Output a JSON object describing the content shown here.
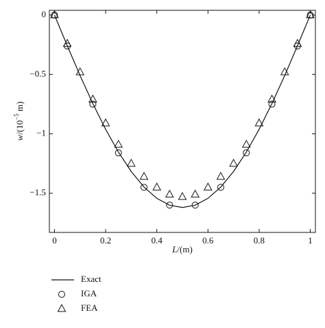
{
  "chart_data": {
    "type": "line",
    "xlabel": [
      "L",
      "/(m)"
    ],
    "ylabel": [
      "w",
      "/(10",
      "−5",
      " m)"
    ],
    "xlim": [
      -0.02,
      1.02
    ],
    "ylim": [
      -1.83,
      0.04
    ],
    "xticks": [
      0,
      0.2,
      0.4,
      0.6,
      0.8,
      1
    ],
    "yticks": [
      0,
      {
        "value": -0.5,
        "label": "−0.5"
      },
      {
        "value": -1,
        "label": "−1"
      },
      {
        "value": -1.5,
        "label": "−1.5"
      }
    ],
    "series": [
      {
        "name": "Exact",
        "color": "#111111",
        "marker": "none",
        "x": [
          0,
          0.05,
          0.1,
          0.15,
          0.2,
          0.25,
          0.3,
          0.35,
          0.4,
          0.45,
          0.5,
          0.55,
          0.6,
          0.65,
          0.7,
          0.75,
          0.8,
          0.85,
          0.9,
          0.95,
          1
        ],
        "values": [
          0,
          -0.258,
          -0.509,
          -0.745,
          -0.962,
          -1.154,
          -1.317,
          -1.448,
          -1.543,
          -1.601,
          -1.62,
          -1.601,
          -1.543,
          -1.448,
          -1.317,
          -1.154,
          -0.962,
          -0.745,
          -0.509,
          -0.258,
          0
        ]
      },
      {
        "name": "IGA",
        "color": "#111111",
        "marker": "circle",
        "x": [
          0,
          0.05,
          0.15,
          0.25,
          0.35,
          0.45,
          0.55,
          0.65,
          0.75,
          0.85,
          0.95,
          1
        ],
        "values": [
          0,
          -0.26,
          -0.75,
          -1.16,
          -1.45,
          -1.6,
          -1.6,
          -1.45,
          -1.16,
          -0.75,
          -0.26,
          0
        ]
      },
      {
        "name": "FEA",
        "color": "#111111",
        "marker": "triangle",
        "x": [
          0,
          0.05,
          0.1,
          0.15,
          0.2,
          0.25,
          0.3,
          0.35,
          0.4,
          0.45,
          0.5,
          0.55,
          0.6,
          0.65,
          0.7,
          0.75,
          0.8,
          0.85,
          0.9,
          0.95,
          1
        ],
        "values": [
          0,
          -0.24,
          -0.48,
          -0.71,
          -0.91,
          -1.09,
          -1.25,
          -1.36,
          -1.45,
          -1.51,
          -1.53,
          -1.51,
          -1.45,
          -1.36,
          -1.25,
          -1.09,
          -0.91,
          -0.71,
          -0.48,
          -0.24,
          0
        ]
      }
    ]
  }
}
